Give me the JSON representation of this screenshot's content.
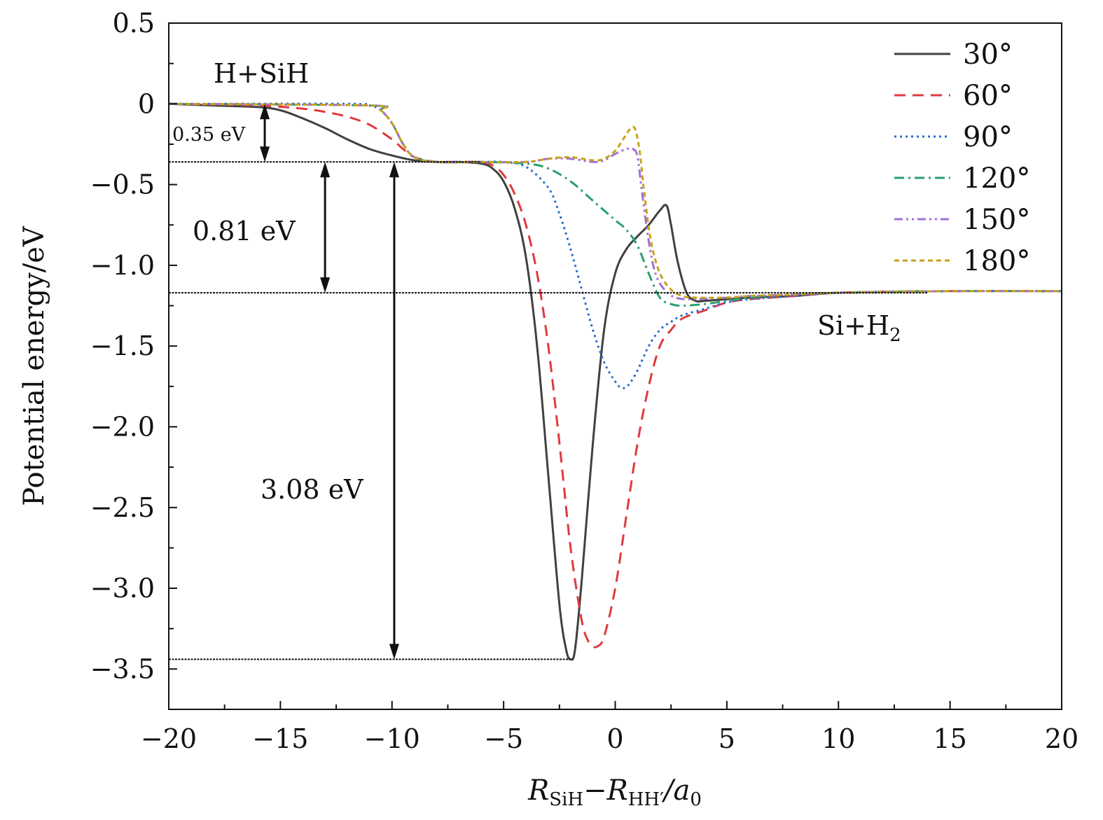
{
  "chart_data": {
    "type": "line",
    "xlabel_parts": {
      "main1": "R",
      "sub1": "SiH",
      "dash": "−",
      "main2": "R",
      "sub2": "HH′",
      "slash": "/a",
      "sub3": "0"
    },
    "ylabel": "Potential energy/eV",
    "xlim": [
      -20,
      20
    ],
    "ylim": [
      -3.75,
      0.5
    ],
    "xticks": [
      -20,
      -15,
      -10,
      -5,
      0,
      5,
      10,
      15,
      20
    ],
    "xtick_labels": [
      "−20",
      "−15",
      "−10",
      "−5",
      "0",
      "5",
      "10",
      "15",
      "20"
    ],
    "yticks": [
      0.5,
      0,
      -0.5,
      -1.0,
      -1.5,
      -2.0,
      -2.5,
      -3.0,
      -3.5
    ],
    "ytick_labels": [
      "0.5",
      "0",
      "−0.5",
      "−1.0",
      "−1.5",
      "−2.0",
      "−2.5",
      "−3.0",
      "−3.5"
    ],
    "series": [
      {
        "name": "30°",
        "color": "#404040",
        "dash": "solid",
        "x": [
          -20,
          -18,
          -16,
          -15,
          -14,
          -13,
          -12,
          -11,
          -10,
          -9,
          -8,
          -7,
          -6,
          -5.5,
          -5,
          -4.5,
          -4,
          -3.5,
          -3,
          -2.5,
          -2.2,
          -2.0,
          -1.8,
          -1.5,
          -1,
          -0.5,
          0,
          0.5,
          1,
          1.5,
          2.0,
          2.3,
          2.5,
          2.8,
          3.2,
          3.6,
          4,
          5,
          6,
          8,
          10,
          13.8
        ],
        "y": [
          0,
          -0.01,
          -0.02,
          -0.04,
          -0.09,
          -0.15,
          -0.22,
          -0.28,
          -0.32,
          -0.35,
          -0.36,
          -0.36,
          -0.37,
          -0.4,
          -0.48,
          -0.65,
          -0.95,
          -1.5,
          -2.3,
          -3.1,
          -3.38,
          -3.44,
          -3.38,
          -2.95,
          -2.1,
          -1.4,
          -1.05,
          -0.9,
          -0.82,
          -0.75,
          -0.66,
          -0.63,
          -0.75,
          -0.98,
          -1.17,
          -1.22,
          -1.22,
          -1.21,
          -1.2,
          -1.19,
          -1.17,
          -1.16
        ]
      },
      {
        "name": "60°",
        "color": "#e0393e",
        "dash": "dashed",
        "x": [
          -20,
          -16,
          -14,
          -13,
          -12,
          -11,
          -10,
          -9.5,
          -9,
          -8,
          -7,
          -6,
          -5.5,
          -5,
          -4.5,
          -4,
          -3.5,
          -3,
          -2.5,
          -2,
          -1.5,
          -1.2,
          -1.0,
          -0.8,
          -0.5,
          0,
          0.5,
          1,
          1.5,
          2,
          2.5,
          3,
          4,
          5,
          6,
          8,
          10,
          15,
          20
        ],
        "y": [
          0,
          -0.01,
          -0.03,
          -0.05,
          -0.08,
          -0.13,
          -0.22,
          -0.28,
          -0.33,
          -0.36,
          -0.36,
          -0.36,
          -0.38,
          -0.44,
          -0.56,
          -0.75,
          -1.05,
          -1.5,
          -2.1,
          -2.75,
          -3.2,
          -3.33,
          -3.36,
          -3.36,
          -3.3,
          -3.0,
          -2.55,
          -2.1,
          -1.75,
          -1.5,
          -1.4,
          -1.33,
          -1.28,
          -1.23,
          -1.21,
          -1.19,
          -1.17,
          -1.16,
          -1.16
        ]
      },
      {
        "name": "90°",
        "color": "#2a6ecd",
        "dash": "dotted",
        "x": [
          -20,
          -12,
          -11,
          -10.5,
          -10,
          -9.5,
          -9,
          -8,
          -7,
          -6,
          -5,
          -4,
          -3,
          -2.5,
          -2,
          -1.5,
          -1,
          -0.5,
          0,
          0.3,
          0.6,
          1,
          1.5,
          2,
          2.5,
          3,
          4,
          5,
          6,
          8,
          10,
          15,
          20
        ],
        "y": [
          0,
          0,
          -0.01,
          -0.04,
          -0.12,
          -0.25,
          -0.33,
          -0.36,
          -0.36,
          -0.36,
          -0.36,
          -0.39,
          -0.52,
          -0.68,
          -0.9,
          -1.15,
          -1.4,
          -1.6,
          -1.72,
          -1.76,
          -1.74,
          -1.65,
          -1.5,
          -1.4,
          -1.35,
          -1.31,
          -1.27,
          -1.23,
          -1.21,
          -1.19,
          -1.17,
          -1.16,
          -1.16
        ]
      },
      {
        "name": "120°",
        "color": "#2aa06e",
        "dash": "dashdot",
        "x": [
          -20,
          -11,
          -10.5,
          -10,
          -9.5,
          -9,
          -8,
          -6,
          -4,
          -3,
          -2,
          -1,
          0,
          0.5,
          1,
          1.5,
          2,
          2.5,
          3,
          4,
          5,
          6,
          8,
          10,
          15,
          20
        ],
        "y": [
          0,
          -0.01,
          -0.04,
          -0.12,
          -0.25,
          -0.33,
          -0.36,
          -0.36,
          -0.37,
          -0.4,
          -0.48,
          -0.6,
          -0.72,
          -0.78,
          -0.88,
          -1.05,
          -1.2,
          -1.24,
          -1.25,
          -1.24,
          -1.22,
          -1.2,
          -1.18,
          -1.17,
          -1.16,
          -1.16
        ]
      },
      {
        "name": "150°",
        "color": "#a070d8",
        "dash": "dashdotdot",
        "x": [
          -20,
          -11,
          -10.5,
          -10,
          -9.5,
          -9,
          -8,
          -6,
          -4,
          -3,
          -2,
          -1,
          -0.5,
          0,
          0.5,
          0.8,
          1.0,
          1.2,
          1.5,
          1.8,
          2.2,
          2.7,
          3.5,
          5,
          6,
          8,
          10,
          15,
          20
        ],
        "y": [
          0,
          -0.01,
          -0.04,
          -0.12,
          -0.25,
          -0.33,
          -0.36,
          -0.36,
          -0.36,
          -0.34,
          -0.34,
          -0.36,
          -0.35,
          -0.31,
          -0.28,
          -0.28,
          -0.33,
          -0.55,
          -0.85,
          -1.05,
          -1.15,
          -1.2,
          -1.21,
          -1.2,
          -1.19,
          -1.18,
          -1.17,
          -1.16,
          -1.16
        ]
      },
      {
        "name": "180°",
        "color": "#c8a216",
        "dash": "shortdash",
        "x": [
          -20,
          -11,
          -10.5,
          -10,
          -9.5,
          -9,
          -8,
          -6,
          -4,
          -3,
          -2,
          -1,
          -0.5,
          0,
          0.4,
          0.7,
          0.9,
          1.1,
          1.3,
          1.6,
          2.0,
          2.5,
          3.0,
          3.5,
          5,
          6,
          8,
          10,
          15,
          20
        ],
        "y": [
          0,
          -0.01,
          -0.04,
          -0.12,
          -0.25,
          -0.33,
          -0.36,
          -0.36,
          -0.36,
          -0.34,
          -0.33,
          -0.35,
          -0.34,
          -0.29,
          -0.21,
          -0.15,
          -0.16,
          -0.3,
          -0.55,
          -0.85,
          -1.05,
          -1.15,
          -1.19,
          -1.2,
          -1.2,
          -1.19,
          -1.18,
          -1.17,
          -1.16,
          -1.16
        ]
      }
    ],
    "reference_lines": [
      {
        "y": -0.36,
        "x_from": -20,
        "x_to": -6
      },
      {
        "y": -1.17,
        "x_from": -20,
        "x_to": 14
      },
      {
        "y": -3.44,
        "x_from": -20,
        "x_to": -2
      }
    ],
    "arrows": [
      {
        "x": -15.7,
        "y_from": 0,
        "y_to": -0.36
      },
      {
        "x": -13.0,
        "y_from": -0.36,
        "y_to": -1.17
      },
      {
        "x": -9.9,
        "y_from": -0.36,
        "y_to": -3.44
      }
    ],
    "annotations": {
      "reactant": "H+SiH",
      "product_main": "Si+H",
      "product_sub": "2",
      "e1": "0.35 eV",
      "e2": "0.81 eV",
      "e3": "3.08 eV"
    }
  }
}
